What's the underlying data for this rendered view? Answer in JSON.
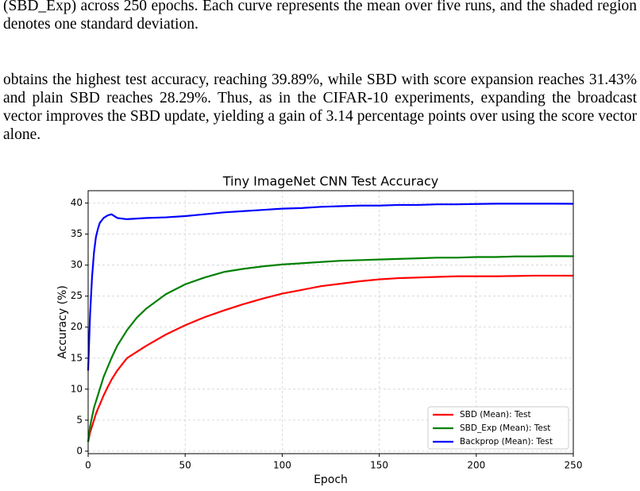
{
  "paragraphs": [
    {
      "lines": [
        "(SBD_Exp) across 250 epochs. Each curve represents the mean over five runs, and the shaded region",
        "denotes one standard deviation."
      ]
    },
    {
      "lines": [
        "obtains the highest test accuracy, reaching 39.89%, while SBD with score expansion reaches 31.43%",
        "and plain SBD reaches 28.29%. Thus, as in the CIFAR-10 experiments, expanding the broadcast",
        "vector improves the SBD update, yielding a gain of 3.14 percentage points over using the score vector",
        "alone."
      ]
    }
  ],
  "chart_data": {
    "type": "line",
    "title": "Tiny ImageNet CNN Test Accuracy",
    "x_label": "Epoch",
    "y_label": "Accuracy (%)",
    "x": [
      0,
      1,
      2,
      3,
      4,
      5,
      6,
      8,
      10,
      12,
      15,
      20,
      25,
      30,
      40,
      50,
      60,
      70,
      80,
      90,
      100,
      110,
      120,
      130,
      140,
      150,
      160,
      170,
      180,
      190,
      200,
      210,
      220,
      230,
      240,
      250
    ],
    "series": [
      {
        "name": "SBD (Mean): Test",
        "color": "#ff0000",
        "values": [
          1.5,
          3,
          4,
          5,
          6,
          6.8,
          7.5,
          9,
          10.3,
          11.5,
          13,
          15,
          16,
          17,
          18.8,
          20.3,
          21.6,
          22.7,
          23.7,
          24.6,
          25.4,
          26,
          26.6,
          27,
          27.4,
          27.7,
          27.9,
          28,
          28.1,
          28.2,
          28.2,
          28.2,
          28.25,
          28.3,
          28.3,
          28.29
        ]
      },
      {
        "name": "SBD_Exp (Mean): Test",
        "color": "#008000",
        "values": [
          1.5,
          4,
          5.5,
          7,
          8,
          9,
          10,
          12,
          13.5,
          15,
          17,
          19.5,
          21.5,
          23,
          25.3,
          26.9,
          28,
          28.9,
          29.4,
          29.8,
          30.1,
          30.3,
          30.5,
          30.7,
          30.8,
          30.9,
          31,
          31.1,
          31.2,
          31.2,
          31.3,
          31.3,
          31.4,
          31.4,
          31.45,
          31.43
        ]
      },
      {
        "name": "Backprop (Mean): Test",
        "color": "#0000ff",
        "values": [
          13,
          22,
          28,
          32,
          34.5,
          35.8,
          36.8,
          37.6,
          38,
          38.2,
          37.6,
          37.4,
          37.5,
          37.6,
          37.7,
          37.9,
          38.2,
          38.5,
          38.7,
          38.9,
          39.1,
          39.2,
          39.4,
          39.5,
          39.6,
          39.6,
          39.7,
          39.7,
          39.8,
          39.8,
          39.85,
          39.9,
          39.9,
          39.9,
          39.9,
          39.89
        ]
      }
    ],
    "xlim": [
      0,
      250
    ],
    "xticks": [
      0,
      50,
      100,
      150,
      200,
      250
    ],
    "ylim": [
      -0.4,
      42
    ],
    "yticks": [
      0,
      5,
      10,
      15,
      20,
      25,
      30,
      35,
      40
    ],
    "grid": true,
    "legend": "lower right"
  }
}
